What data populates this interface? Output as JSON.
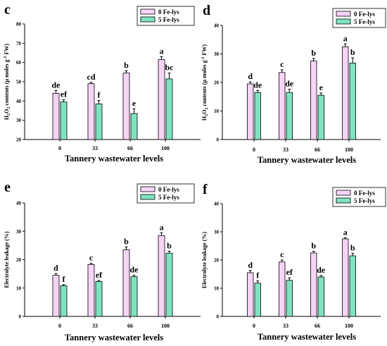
{
  "colors": {
    "series_0": "#f6d4f6",
    "series_1": "#7fe3c2"
  },
  "chart_data": [
    {
      "type": "bar",
      "panel": "c",
      "ylabel_main": "H",
      "ylabel_sub": "2",
      "ylabel_mid": "O",
      "ylabel_sub2": "2",
      "ylabel_rest": " contents (μ moles g",
      "ylabel_sup": "-1",
      "ylabel_end": " FW)",
      "xlabel": "Tannery wastewater levels",
      "categories": [
        "0",
        "33",
        "66",
        "100"
      ],
      "ylim": [
        20,
        80
      ],
      "yticks": [
        20,
        30,
        40,
        50,
        60,
        70,
        80
      ],
      "legend_position": "top-right",
      "series": [
        {
          "name": "0 Fe-lys",
          "values": [
            44,
            49,
            54.5,
            61.5
          ],
          "errors": [
            1.5,
            0.7,
            1.2,
            1.5
          ],
          "labels": [
            "de",
            "cd",
            "b",
            "a"
          ]
        },
        {
          "name": "5 Fe-lys",
          "values": [
            39.5,
            38.5,
            33.5,
            51.5
          ],
          "errors": [
            1.2,
            1.8,
            2.5,
            3.0
          ],
          "labels": [
            "ef",
            "f",
            "e",
            "bc"
          ]
        }
      ]
    },
    {
      "type": "bar",
      "panel": "d",
      "ylabel_main": "H",
      "ylabel_sub": "2",
      "ylabel_mid": "O",
      "ylabel_sub2": "2",
      "ylabel_rest": " contents (μ moles g",
      "ylabel_sup": "-1",
      "ylabel_end": " FW)",
      "xlabel": "Tannery wastewater levels",
      "categories": [
        "0",
        "33",
        "66",
        "100"
      ],
      "ylim": [
        0,
        40
      ],
      "yticks": [
        0,
        10,
        20,
        30,
        40
      ],
      "legend_position": "top-right",
      "series": [
        {
          "name": "0 Fe-lys",
          "values": [
            19.5,
            23.5,
            27.5,
            32.5
          ],
          "errors": [
            0.7,
            0.9,
            0.9,
            1.0
          ],
          "labels": [
            "d",
            "c",
            "b",
            "a"
          ]
        },
        {
          "name": "5 Fe-lys",
          "values": [
            16.5,
            16.5,
            15.5,
            26.8
          ],
          "errors": [
            0.7,
            1.1,
            0.8,
            1.8
          ],
          "labels": [
            "de",
            "de",
            "e",
            "b"
          ]
        }
      ]
    },
    {
      "type": "bar",
      "panel": "e",
      "ylabel": "Electrolyte leakage (%)",
      "xlabel": "Tannery wastewater levels",
      "categories": [
        "0",
        "33",
        "66",
        "100"
      ],
      "ylim": [
        0,
        40
      ],
      "yticks": [
        0,
        10,
        20,
        30,
        40
      ],
      "legend_position": "top-right",
      "series": [
        {
          "name": "0 Fe-lys",
          "values": [
            14.5,
            18.3,
            23.5,
            28.5
          ],
          "errors": [
            0.6,
            0.4,
            1.0,
            1.0
          ],
          "labels": [
            "d",
            "c",
            "b",
            "a"
          ]
        },
        {
          "name": "5 Fe-lys",
          "values": [
            10.8,
            12.3,
            14.0,
            22.3
          ],
          "errors": [
            0.4,
            0.4,
            0.5,
            0.7
          ],
          "labels": [
            "f",
            "ef",
            "de",
            "b"
          ]
        }
      ]
    },
    {
      "type": "bar",
      "panel": "f",
      "ylabel": "Electrolyte leakage (%)",
      "xlabel": "Tannery wastewater levels",
      "categories": [
        "0",
        "33",
        "66",
        "100"
      ],
      "ylim": [
        0,
        40
      ],
      "yticks": [
        0,
        10,
        20,
        30,
        40
      ],
      "legend_position": "top-right",
      "series": [
        {
          "name": "0 Fe-lys",
          "values": [
            15.5,
            19.3,
            22.5,
            27.5
          ],
          "errors": [
            0.8,
            0.7,
            0.6,
            0.4
          ],
          "labels": [
            "d",
            "c",
            "b",
            "a"
          ]
        },
        {
          "name": "5 Fe-lys",
          "values": [
            11.8,
            12.8,
            14.0,
            21.5
          ],
          "errors": [
            0.8,
            0.9,
            0.5,
            0.9
          ],
          "labels": [
            "f",
            "ef",
            "de",
            "b"
          ]
        }
      ]
    }
  ]
}
